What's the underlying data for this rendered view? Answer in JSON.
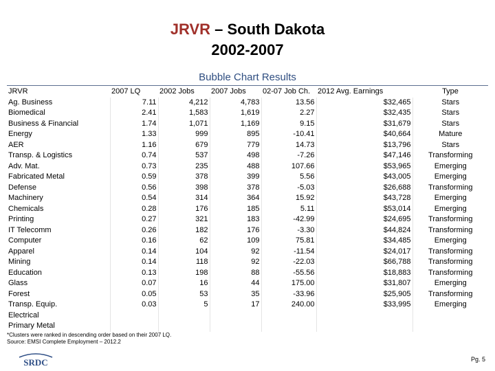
{
  "title": {
    "line1_accent": "JRVR",
    "line1_rest": " – South Dakota",
    "line2": "2002-2007"
  },
  "subtitle": "Bubble Chart Results",
  "table": {
    "headers": [
      "JRVR",
      "2007 LQ",
      "2002 Jobs",
      "2007 Jobs",
      "02-07 Job Ch.",
      "2012 Avg. Earnings",
      "Type"
    ],
    "rows": [
      [
        "Ag. Business",
        "7.11",
        "4,212",
        "4,783",
        "13.56",
        "$32,465",
        "Stars"
      ],
      [
        "Biomedical",
        "2.41",
        "1,583",
        "1,619",
        "2.27",
        "$32,435",
        "Stars"
      ],
      [
        "Business & Financial",
        "1.74",
        "1,071",
        "1,169",
        "9.15",
        "$31,679",
        "Stars"
      ],
      [
        "Energy",
        "1.33",
        "999",
        "895",
        "-10.41",
        "$40,664",
        "Mature"
      ],
      [
        "AER",
        "1.16",
        "679",
        "779",
        "14.73",
        "$13,796",
        "Stars"
      ],
      [
        "Transp. & Logistics",
        "0.74",
        "537",
        "498",
        "-7.26",
        "$47,146",
        "Transforming"
      ],
      [
        "Adv. Mat.",
        "0.73",
        "235",
        "488",
        "107.66",
        "$53,965",
        "Emerging"
      ],
      [
        "Fabricated Metal",
        "0.59",
        "378",
        "399",
        "5.56",
        "$43,005",
        "Emerging"
      ],
      [
        "Defense",
        "0.56",
        "398",
        "378",
        "-5.03",
        "$26,688",
        "Transforming"
      ],
      [
        "Machinery",
        "0.54",
        "314",
        "364",
        "15.92",
        "$43,728",
        "Emerging"
      ],
      [
        "Chemicals",
        "0.28",
        "176",
        "185",
        "5.11",
        "$53,014",
        "Emerging"
      ],
      [
        "Printing",
        "0.27",
        "321",
        "183",
        "-42.99",
        "$24,695",
        "Transforming"
      ],
      [
        "IT Telecomm",
        "0.26",
        "182",
        "176",
        "-3.30",
        "$44,824",
        "Transforming"
      ],
      [
        "Computer",
        "0.16",
        "62",
        "109",
        "75.81",
        "$34,485",
        "Emerging"
      ],
      [
        "Apparel",
        "0.14",
        "104",
        "92",
        "-11.54",
        "$24,017",
        "Transforming"
      ],
      [
        "Mining",
        "0.14",
        "118",
        "92",
        "-22.03",
        "$66,788",
        "Transforming"
      ],
      [
        "Education",
        "0.13",
        "198",
        "88",
        "-55.56",
        "$18,883",
        "Transforming"
      ],
      [
        "Glass",
        "0.07",
        "16",
        "44",
        "175.00",
        "$31,807",
        "Emerging"
      ],
      [
        "Forest",
        "0.05",
        "53",
        "35",
        "-33.96",
        "$25,905",
        "Transforming"
      ],
      [
        "Transp. Equip.",
        "0.03",
        "5",
        "17",
        "240.00",
        "$33,995",
        "Emerging"
      ],
      [
        "Electrical",
        "",
        "",
        "",
        "",
        "",
        ""
      ],
      [
        "Primary Metal",
        "",
        "",
        "",
        "",
        "",
        ""
      ]
    ]
  },
  "footnotes": [
    "*Clusters were ranked in descending order based on their 2007 LQ.",
    "Source: EMSI Complete Employment – 2012.2"
  ],
  "logo_text": "SRDC",
  "page_number": "Pg. 5",
  "colors": {
    "accent": "#a0302a",
    "subtitle": "#2e4d80",
    "logo": "#2f4f86"
  }
}
